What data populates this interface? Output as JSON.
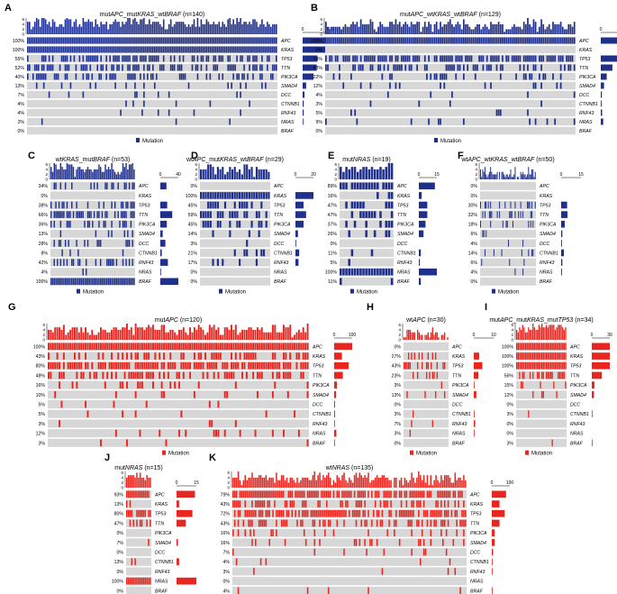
{
  "colors": {
    "blue": "#1f2f8c",
    "red": "#e8261f",
    "gray": "#d7d7d7",
    "bg": "#ffffff"
  },
  "legend_label": "Mutation",
  "genes": [
    "APC",
    "KRAS",
    "TP53",
    "TTN",
    "PIK3CA",
    "SMAD4",
    "DCC",
    "CTNNB1",
    "RNF43",
    "NRAS",
    "BRAF"
  ],
  "chart_data": [
    {
      "id": "A",
      "type": "oncoprint",
      "title_parts": [
        {
          "t": "mut",
          "i": false
        },
        {
          "t": "APC",
          "i": true
        },
        {
          "t": "_mut",
          "i": false
        },
        {
          "t": "KRAS",
          "i": true
        },
        {
          "t": "_wt",
          "i": false
        },
        {
          "t": "BRAF",
          "i": true
        },
        {
          "t": " (n=140)",
          "i": false
        }
      ],
      "n": 140,
      "color": "blue",
      "pct": [
        100,
        100,
        55,
        52,
        40,
        13,
        7,
        4,
        4,
        2,
        0
      ],
      "bar_axis": {
        "ticks": [
          0,
          100
        ]
      },
      "count_axis": {
        "ticks": [
          0,
          2,
          4,
          6
        ]
      }
    },
    {
      "id": "B",
      "type": "oncoprint",
      "title_parts": [
        {
          "t": "mut",
          "i": false
        },
        {
          "t": "APC",
          "i": true
        },
        {
          "t": "_wt",
          "i": false
        },
        {
          "t": "KRAS",
          "i": true
        },
        {
          "t": "_wt",
          "i": false
        },
        {
          "t": "BRAF",
          "i": true
        },
        {
          "t": " (n=129)",
          "i": false
        }
      ],
      "n": 129,
      "color": "blue",
      "pct": [
        100,
        0,
        74,
        43,
        22,
        12,
        4,
        3,
        5,
        9,
        0
      ],
      "bar_axis": {
        "ticks": [
          0,
          100
        ]
      },
      "count_axis": {
        "ticks": [
          0,
          2,
          4,
          6
        ]
      }
    },
    {
      "id": "C",
      "type": "oncoprint",
      "title_parts": [
        {
          "t": "wt",
          "i": false
        },
        {
          "t": "KRAS",
          "i": true
        },
        {
          "t": "_mut",
          "i": false
        },
        {
          "t": "BRAF",
          "i": true
        },
        {
          "t": " (n=53)",
          "i": false
        }
      ],
      "n": 53,
      "color": "blue",
      "pct": [
        34,
        0,
        38,
        66,
        36,
        13,
        28,
        8,
        42,
        4,
        100
      ],
      "bar_axis": {
        "ticks": [
          0,
          40
        ]
      },
      "count_axis": {
        "ticks": [
          0,
          2,
          4,
          6
        ]
      }
    },
    {
      "id": "D",
      "type": "oncoprint",
      "title_parts": [
        {
          "t": "wt",
          "i": false
        },
        {
          "t": "APC",
          "i": true
        },
        {
          "t": "_mut",
          "i": false
        },
        {
          "t": "KRAS",
          "i": true
        },
        {
          "t": "_wt",
          "i": false
        },
        {
          "t": "BRAF",
          "i": true
        },
        {
          "t": " (n=29)",
          "i": false
        }
      ],
      "n": 29,
      "color": "blue",
      "pct": [
        0,
        100,
        45,
        59,
        45,
        14,
        3,
        21,
        17,
        0,
        0
      ],
      "bar_axis": {
        "ticks": [
          0,
          20
        ]
      },
      "count_axis": {
        "ticks": [
          0,
          2,
          4,
          6
        ]
      }
    },
    {
      "id": "E",
      "type": "oncoprint",
      "title_parts": [
        {
          "t": "mut",
          "i": false
        },
        {
          "t": "NRAS",
          "i": true
        },
        {
          "t": " (n=19)",
          "i": false
        }
      ],
      "n": 19,
      "color": "blue",
      "pct": [
        89,
        16,
        47,
        47,
        37,
        26,
        0,
        11,
        5,
        100,
        11
      ],
      "bar_axis": {
        "ticks": [
          0,
          15
        ]
      },
      "count_axis": {
        "ticks": [
          0,
          2,
          4,
          6
        ]
      }
    },
    {
      "id": "F",
      "type": "oncoprint",
      "title_parts": [
        {
          "t": "wt",
          "i": false
        },
        {
          "t": "APC",
          "i": true
        },
        {
          "t": "_wt",
          "i": false
        },
        {
          "t": "KRAS",
          "i": true
        },
        {
          "t": "_wt",
          "i": false
        },
        {
          "t": "BRAF",
          "i": true
        },
        {
          "t": " (n=50)",
          "i": false
        }
      ],
      "n": 50,
      "color": "blue",
      "pct": [
        0,
        0,
        30,
        32,
        18,
        6,
        4,
        14,
        6,
        4,
        0
      ],
      "bar_axis": {
        "ticks": [
          0,
          15
        ]
      },
      "count_axis": {
        "ticks": [
          0,
          2,
          4,
          6
        ]
      }
    },
    {
      "id": "G",
      "type": "oncoprint",
      "title_parts": [
        {
          "t": "mut",
          "i": false
        },
        {
          "t": "APC",
          "i": true
        },
        {
          "t": " (n=120)",
          "i": false
        }
      ],
      "n": 120,
      "color": "red",
      "pct": [
        100,
        43,
        80,
        48,
        16,
        10,
        5,
        5,
        3,
        12,
        3
      ],
      "bar_axis": {
        "ticks": [
          0,
          100
        ]
      },
      "count_axis": {
        "ticks": [
          0,
          2,
          4,
          6
        ]
      }
    },
    {
      "id": "H",
      "type": "oncoprint",
      "title_parts": [
        {
          "t": "wt",
          "i": false
        },
        {
          "t": "APC",
          "i": true
        },
        {
          "t": " (n=30)",
          "i": false
        }
      ],
      "n": 30,
      "color": "red",
      "pct": [
        0,
        27,
        43,
        23,
        3,
        13,
        0,
        3,
        7,
        3,
        0
      ],
      "bar_axis": {
        "ticks": [
          0,
          10
        ]
      },
      "count_axis": {
        "ticks": [
          0,
          2,
          4,
          6
        ]
      }
    },
    {
      "id": "I",
      "type": "oncoprint",
      "title_parts": [
        {
          "t": "mut",
          "i": false
        },
        {
          "t": "APC",
          "i": true
        },
        {
          "t": "_mut",
          "i": false
        },
        {
          "t": "KRAS",
          "i": true
        },
        {
          "t": "_mut",
          "i": false
        },
        {
          "t": "TP53",
          "i": true
        },
        {
          "t": " (n=34)",
          "i": false
        }
      ],
      "n": 34,
      "color": "red",
      "pct": [
        100,
        100,
        100,
        56,
        15,
        12,
        0,
        3,
        0,
        0,
        3
      ],
      "bar_axis": {
        "ticks": [
          0,
          30
        ]
      },
      "count_axis": {
        "ticks": [
          0,
          2,
          4,
          6
        ]
      }
    },
    {
      "id": "J",
      "type": "oncoprint",
      "title_parts": [
        {
          "t": "mut",
          "i": false
        },
        {
          "t": "NRAS",
          "i": true
        },
        {
          "t": " (n=15)",
          "i": false
        }
      ],
      "n": 15,
      "color": "red",
      "pct": [
        93,
        13,
        80,
        47,
        0,
        7,
        0,
        13,
        0,
        100,
        0
      ],
      "bar_axis": {
        "ticks": [
          0,
          15
        ]
      },
      "count_axis": {
        "ticks": [
          0,
          2,
          4,
          6
        ]
      }
    },
    {
      "id": "K",
      "type": "oncoprint",
      "title_parts": [
        {
          "t": "wt",
          "i": false
        },
        {
          "t": "NRAS",
          "i": true
        },
        {
          "t": " (n=135)",
          "i": false
        }
      ],
      "n": 135,
      "color": "red",
      "pct": [
        79,
        43,
        72,
        43,
        16,
        16,
        7,
        4,
        3,
        0,
        4
      ],
      "bar_axis": {
        "ticks": [
          0,
          100
        ]
      },
      "count_axis": {
        "ticks": [
          0,
          2,
          4,
          6
        ]
      }
    }
  ]
}
